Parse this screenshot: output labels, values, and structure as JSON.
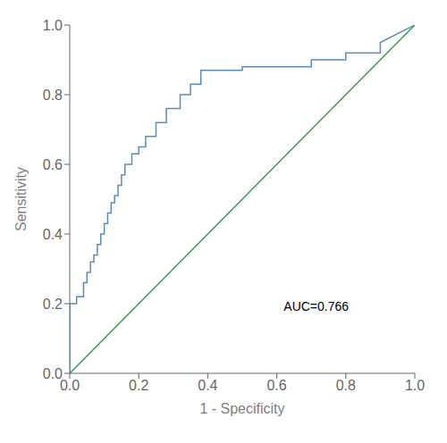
{
  "chart_data": {
    "type": "line",
    "xlabel": "1 - Specificity",
    "ylabel": "Sensitivity",
    "xlim": [
      0.0,
      1.0
    ],
    "ylim": [
      0.0,
      1.0
    ],
    "xticks": [
      {
        "value": 0.0,
        "label": "0.0"
      },
      0.2,
      0.4,
      0.6,
      0.8,
      {
        "value": 1.0,
        "label": "1.0"
      }
    ],
    "yticks": [
      {
        "value": 0.0,
        "label": "0.0"
      },
      0.2,
      0.4,
      0.6,
      0.8,
      {
        "value": 1.0,
        "label": "1.0"
      }
    ],
    "grid": false,
    "series": [
      {
        "color": "#3A9B4B",
        "x": [
          0,
          1
        ],
        "values": [
          0,
          1
        ]
      },
      {
        "color": "#5B8DB8",
        "x": [
          0.0,
          0.0,
          0.0,
          0.02,
          0.02,
          0.04,
          0.04,
          0.05,
          0.05,
          0.06,
          0.06,
          0.07,
          0.07,
          0.08,
          0.08,
          0.09,
          0.09,
          0.1,
          0.1,
          0.11,
          0.11,
          0.12,
          0.12,
          0.13,
          0.13,
          0.14,
          0.14,
          0.15,
          0.15,
          0.16,
          0.16,
          0.18,
          0.18,
          0.2,
          0.2,
          0.22,
          0.22,
          0.25,
          0.25,
          0.28,
          0.28,
          0.32,
          0.32,
          0.35,
          0.35,
          0.38,
          0.38,
          0.4,
          0.4,
          0.42,
          0.42,
          0.5,
          0.5,
          0.6,
          0.6,
          0.7,
          0.7,
          0.8,
          0.8,
          0.9,
          0.9,
          1.0
        ],
        "values": [
          0.0,
          0.17,
          0.2,
          0.2,
          0.22,
          0.22,
          0.26,
          0.26,
          0.29,
          0.29,
          0.32,
          0.32,
          0.34,
          0.34,
          0.37,
          0.37,
          0.4,
          0.4,
          0.43,
          0.43,
          0.46,
          0.46,
          0.49,
          0.49,
          0.51,
          0.51,
          0.54,
          0.54,
          0.57,
          0.57,
          0.6,
          0.6,
          0.63,
          0.63,
          0.65,
          0.65,
          0.68,
          0.68,
          0.72,
          0.72,
          0.76,
          0.76,
          0.8,
          0.8,
          0.83,
          0.83,
          0.87,
          0.87,
          0.87,
          0.87,
          0.87,
          0.87,
          0.88,
          0.88,
          0.88,
          0.88,
          0.9,
          0.9,
          0.92,
          0.92,
          0.95,
          1.0
        ]
      }
    ],
    "annotations": [
      {
        "text": "AUC=0.766",
        "x": 0.62,
        "y": 0.18
      }
    ]
  }
}
